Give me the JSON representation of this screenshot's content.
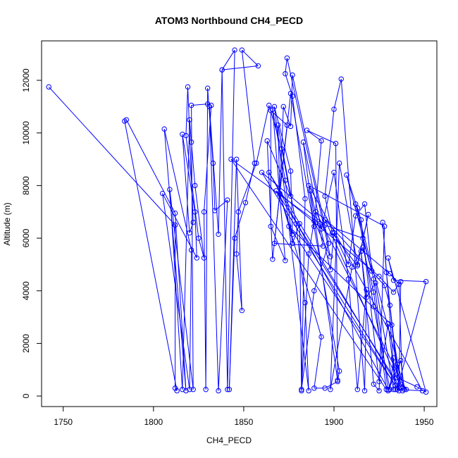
{
  "chart_data": {
    "type": "line",
    "title": "ATOM3 Northbound CH4_PECD",
    "xlabel": "CH4_PECD",
    "ylabel": "Altitude (m)",
    "xlim": [
      1738,
      1957
    ],
    "ylim": [
      -400,
      13500
    ],
    "x_ticks": [
      1750,
      1800,
      1850,
      1900,
      1950
    ],
    "y_ticks": [
      0,
      2000,
      4000,
      6000,
      8000,
      10000,
      12000
    ],
    "x_tick_labels": [
      "1750",
      "1800",
      "1850",
      "1900",
      "1950"
    ],
    "y_tick_labels": [
      "0",
      "2000",
      "4000",
      "6000",
      "8000",
      "10000",
      "12000"
    ],
    "color": "#0000ff",
    "grid": false,
    "series": [
      {
        "points": [
          [
            1742,
            11750
          ],
          [
            1812,
            6500
          ],
          [
            1812,
            300
          ],
          [
            1813,
            200
          ],
          [
            1784,
            10450
          ],
          [
            1785,
            10500
          ],
          [
            1812,
            6950
          ],
          [
            1818,
            200
          ],
          [
            1806,
            10150
          ],
          [
            1821,
            5550
          ],
          [
            1820,
            250
          ],
          [
            1805,
            7700
          ],
          [
            1824,
            5250
          ],
          [
            1823,
            7000
          ],
          [
            1816,
            9950
          ],
          [
            1820,
            6200
          ],
          [
            1822,
            6600
          ],
          [
            1819,
            11750
          ],
          [
            1818,
            9900
          ],
          [
            1825,
            6000
          ],
          [
            1828,
            5250
          ],
          [
            1823,
            8000
          ],
          [
            1821,
            9650
          ],
          [
            1820,
            10500
          ],
          [
            1816,
            250
          ],
          [
            1809,
            7850
          ],
          [
            1822,
            250
          ],
          [
            1821,
            11050
          ],
          [
            1830,
            11100
          ],
          [
            1832,
            11050
          ],
          [
            1828,
            7000
          ],
          [
            1829,
            250
          ],
          [
            1830,
            11700
          ],
          [
            1833,
            8850
          ],
          [
            1834,
            7050
          ],
          [
            1841,
            7450
          ],
          [
            1836,
            200
          ],
          [
            1831,
            11000
          ],
          [
            1836,
            6150
          ],
          [
            1838,
            12400
          ],
          [
            1841,
            250
          ],
          [
            1845,
            13150
          ],
          [
            1838,
            12400
          ],
          [
            1858,
            12550
          ],
          [
            1849,
            13150
          ],
          [
            1856,
            8850
          ],
          [
            1851,
            7350
          ],
          [
            1845,
            6000
          ],
          [
            1842,
            250
          ],
          [
            1846,
            9000
          ],
          [
            1849,
            3250
          ],
          [
            1846,
            5400
          ],
          [
            1847,
            7000
          ],
          [
            1857,
            8850
          ],
          [
            1864,
            11050
          ],
          [
            1871,
            9400
          ],
          [
            1876,
            7600
          ],
          [
            1863,
            9700
          ],
          [
            1866,
            5200
          ],
          [
            1874,
            10300
          ],
          [
            1865,
            10850
          ],
          [
            1865,
            6450
          ],
          [
            1873,
            5150
          ],
          [
            1866,
            10900
          ],
          [
            1873,
            8200
          ],
          [
            1877,
            5800
          ],
          [
            1881,
            6550
          ],
          [
            1882,
            200
          ],
          [
            1886,
            5400
          ],
          [
            1889,
            6650
          ],
          [
            1898,
            5300
          ],
          [
            1874,
            12850
          ],
          [
            1873,
            12250
          ],
          [
            1877,
            11400
          ],
          [
            1884,
            7500
          ],
          [
            1882,
            250
          ],
          [
            1889,
            4000
          ],
          [
            1897,
            5800
          ],
          [
            1877,
            12200
          ],
          [
            1876,
            10250
          ],
          [
            1872,
            11000
          ],
          [
            1870,
            7700
          ],
          [
            1869,
            10300
          ],
          [
            1879,
            6550
          ],
          [
            1884,
            3550
          ],
          [
            1886,
            200
          ],
          [
            1867,
            11000
          ],
          [
            1876,
            8550
          ],
          [
            1877,
            6150
          ],
          [
            1870,
            7650
          ],
          [
            1893,
            2250
          ],
          [
            1889,
            300
          ],
          [
            1895,
            300
          ],
          [
            1902,
            550
          ],
          [
            1903,
            950
          ],
          [
            1876,
            11500
          ],
          [
            1867,
            5800
          ],
          [
            1894,
            5700
          ],
          [
            1887,
            7800
          ],
          [
            1902,
            600
          ],
          [
            1901,
            9600
          ],
          [
            1885,
            10100
          ],
          [
            1893,
            9700
          ],
          [
            1889,
            6450
          ],
          [
            1883,
            9650
          ],
          [
            1893,
            6350
          ],
          [
            1900,
            8500
          ],
          [
            1908,
            4450
          ],
          [
            1913,
            250
          ],
          [
            1918,
            4050
          ],
          [
            1917,
            200
          ],
          [
            1904,
            12050
          ],
          [
            1900,
            10900
          ],
          [
            1895,
            7600
          ],
          [
            1899,
            6200
          ],
          [
            1913,
            4950
          ],
          [
            1919,
            6900
          ],
          [
            1913,
            5000
          ],
          [
            1903,
            8850
          ],
          [
            1898,
            250
          ],
          [
            1910,
            4900
          ],
          [
            1916,
            5650
          ],
          [
            1922,
            3950
          ],
          [
            1929,
            250
          ],
          [
            1843,
            9000
          ],
          [
            1892,
            6550
          ],
          [
            1898,
            4800
          ],
          [
            1900,
            6200
          ],
          [
            1908,
            5000
          ],
          [
            1912,
            6850
          ],
          [
            1917,
            7300
          ],
          [
            1921,
            4750
          ],
          [
            1907,
            8400
          ],
          [
            1915,
            6700
          ],
          [
            1925,
            550
          ],
          [
            1930,
            2750
          ],
          [
            1934,
            400
          ],
          [
            1860,
            8500
          ],
          [
            1895,
            6500
          ],
          [
            1916,
            6000
          ],
          [
            1922,
            4450
          ],
          [
            1930,
            200
          ],
          [
            1937,
            1350
          ],
          [
            1939,
            250
          ],
          [
            1912,
            7300
          ],
          [
            1913,
            7150
          ],
          [
            1922,
            3400
          ],
          [
            1931,
            250
          ],
          [
            1933,
            1450
          ],
          [
            1934,
            250
          ],
          [
            1927,
            6600
          ],
          [
            1929,
            4700
          ],
          [
            1936,
            400
          ],
          [
            1868,
            7800
          ],
          [
            1925,
            4550
          ],
          [
            1933,
            3950
          ],
          [
            1937,
            4350
          ],
          [
            1936,
            300
          ],
          [
            1864,
            8500
          ],
          [
            1930,
            250
          ],
          [
            1935,
            1200
          ],
          [
            1936,
            200
          ],
          [
            1875,
            6450
          ],
          [
            1932,
            2700
          ],
          [
            1937,
            450
          ],
          [
            1940,
            250
          ],
          [
            1890,
            7000
          ],
          [
            1931,
            4650
          ],
          [
            1936,
            4250
          ],
          [
            1938,
            200
          ],
          [
            1895,
            6700
          ],
          [
            1928,
            4200
          ],
          [
            1931,
            3450
          ],
          [
            1935,
            700
          ],
          [
            1946,
            350
          ],
          [
            1951,
            150
          ],
          [
            1930,
            5250
          ],
          [
            1933,
            4400
          ],
          [
            1951,
            4350
          ],
          [
            1935,
            250
          ],
          [
            1949,
            200
          ],
          [
            1886,
            8000
          ],
          [
            1928,
            6450
          ],
          [
            1925,
            200
          ],
          [
            1922,
            450
          ],
          [
            1915,
            5500
          ],
          [
            1918,
            3750
          ],
          [
            1923,
            4300
          ],
          [
            1933,
            250
          ]
        ]
      }
    ]
  }
}
